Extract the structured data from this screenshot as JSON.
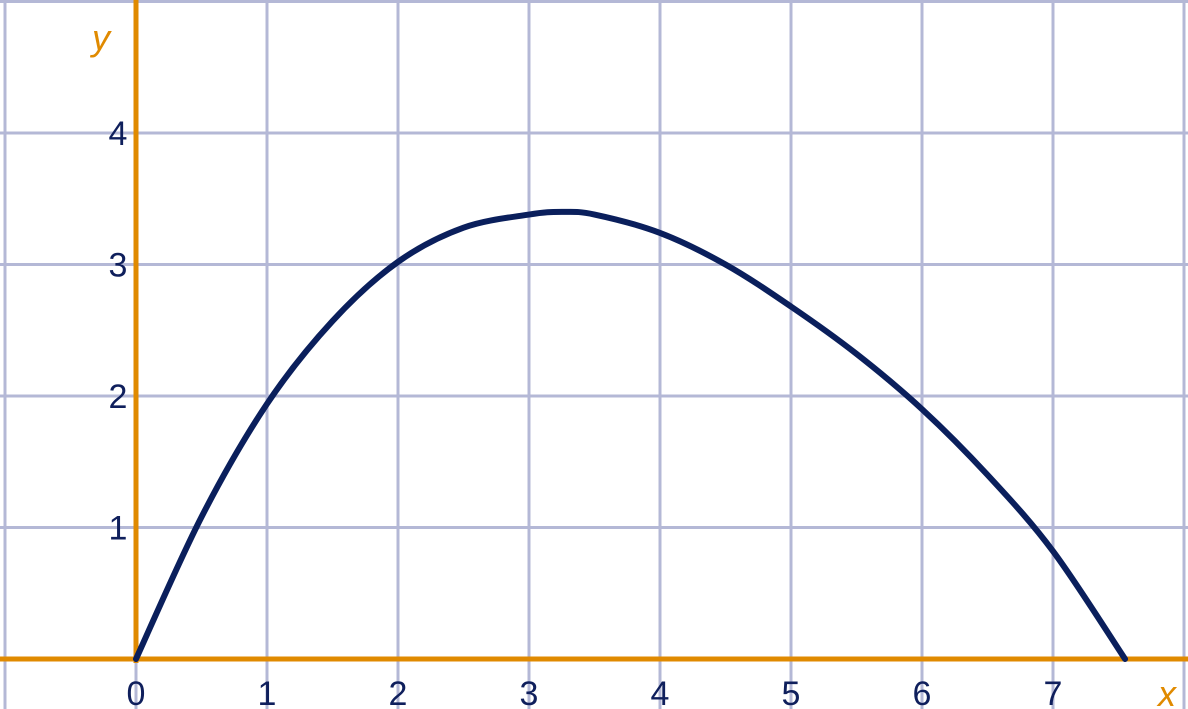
{
  "colors": {
    "grid": "#b4b8d6",
    "axis": "#e08a00",
    "curve": "#0a1f5c",
    "tick_text": "#0f1f5c",
    "background": "#ffffff"
  },
  "chart_data": {
    "type": "line",
    "xlabel": "x",
    "ylabel": "y",
    "xlim": [
      -1,
      7.8
    ],
    "ylim": [
      0,
      4.9
    ],
    "grid": true,
    "x_ticks": [
      "0",
      "1",
      "2",
      "3",
      "4",
      "5",
      "6",
      "7"
    ],
    "y_ticks": [
      "1",
      "2",
      "3",
      "4"
    ],
    "series": [
      {
        "x": [
          0,
          0.5,
          1,
          1.5,
          2,
          2.5,
          3,
          3.25,
          3.5,
          4,
          4.5,
          5,
          5.5,
          6,
          6.5,
          7,
          7.55
        ],
        "y": [
          0,
          1.08,
          1.94,
          2.57,
          3.02,
          3.28,
          3.38,
          3.4,
          3.38,
          3.24,
          3.0,
          2.68,
          2.32,
          1.9,
          1.4,
          0.82,
          0
        ]
      }
    ]
  }
}
